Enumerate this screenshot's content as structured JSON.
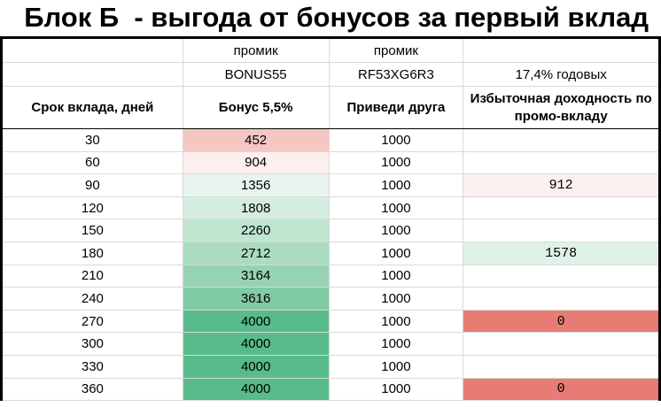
{
  "title": "Блок Б  - выгода от бонусов за первый вклад",
  "header_rows": {
    "row1": {
      "bonus": "промик",
      "friend": "промик",
      "excess": ""
    },
    "row2": {
      "bonus": "BONUS55",
      "friend": "RF53XG6R3",
      "excess": "17,4% годовых"
    }
  },
  "columns": {
    "term": "Срок вклада, дней",
    "bonus": "Бонус 5,5%",
    "friend": "Приведи друга",
    "excess": "Избыточная доходность по промо-вкладу"
  },
  "rows": [
    {
      "term": "30",
      "bonus": "452",
      "friend": "1000",
      "excess": "",
      "bonus_color": "#f4c7c3",
      "excess_color": "#ffffff"
    },
    {
      "term": "60",
      "bonus": "904",
      "friend": "1000",
      "excess": "",
      "bonus_color": "#fcefee",
      "excess_color": "#ffffff"
    },
    {
      "term": "90",
      "bonus": "1356",
      "friend": "1000",
      "excess": "912",
      "bonus_color": "#e8f5ee",
      "excess_color": "#fdf1f0"
    },
    {
      "term": "120",
      "bonus": "1808",
      "friend": "1000",
      "excess": "",
      "bonus_color": "#d4ede0",
      "excess_color": "#ffffff"
    },
    {
      "term": "150",
      "bonus": "2260",
      "friend": "1000",
      "excess": "",
      "bonus_color": "#bfe5d1",
      "excess_color": "#ffffff"
    },
    {
      "term": "180",
      "bonus": "2712",
      "friend": "1000",
      "excess": "1578",
      "bonus_color": "#aadcc2",
      "excess_color": "#dff2e7"
    },
    {
      "term": "210",
      "bonus": "3164",
      "friend": "1000",
      "excess": "",
      "bonus_color": "#95d3b3",
      "excess_color": "#ffffff"
    },
    {
      "term": "240",
      "bonus": "3616",
      "friend": "1000",
      "excess": "",
      "bonus_color": "#80caa4",
      "excess_color": "#ffffff"
    },
    {
      "term": "270",
      "bonus": "4000",
      "friend": "1000",
      "excess": "0",
      "bonus_color": "#57bb8a",
      "excess_color": "#e67c73"
    },
    {
      "term": "300",
      "bonus": "4000",
      "friend": "1000",
      "excess": "",
      "bonus_color": "#57bb8a",
      "excess_color": "#ffffff"
    },
    {
      "term": "330",
      "bonus": "4000",
      "friend": "1000",
      "excess": "",
      "bonus_color": "#57bb8a",
      "excess_color": "#ffffff"
    },
    {
      "term": "360",
      "bonus": "4000",
      "friend": "1000",
      "excess": "0",
      "bonus_color": "#57bb8a",
      "excess_color": "#e67c73"
    }
  ]
}
